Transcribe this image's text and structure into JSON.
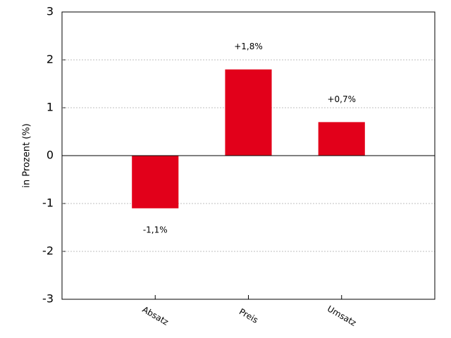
{
  "chart_data": {
    "type": "bar",
    "y_label": "in Prozent (%)",
    "categories": [
      "Absatz",
      "Preis",
      "Umsatz"
    ],
    "values": [
      -1.1,
      1.8,
      0.7
    ],
    "value_labels": [
      "-1,1%",
      "+1,8%",
      "+0,7%"
    ],
    "color": "#e2001a",
    "ylim": [
      -3,
      3
    ],
    "yticks": [
      -3,
      -2,
      -1,
      0,
      1,
      2,
      3
    ],
    "grid": true
  }
}
